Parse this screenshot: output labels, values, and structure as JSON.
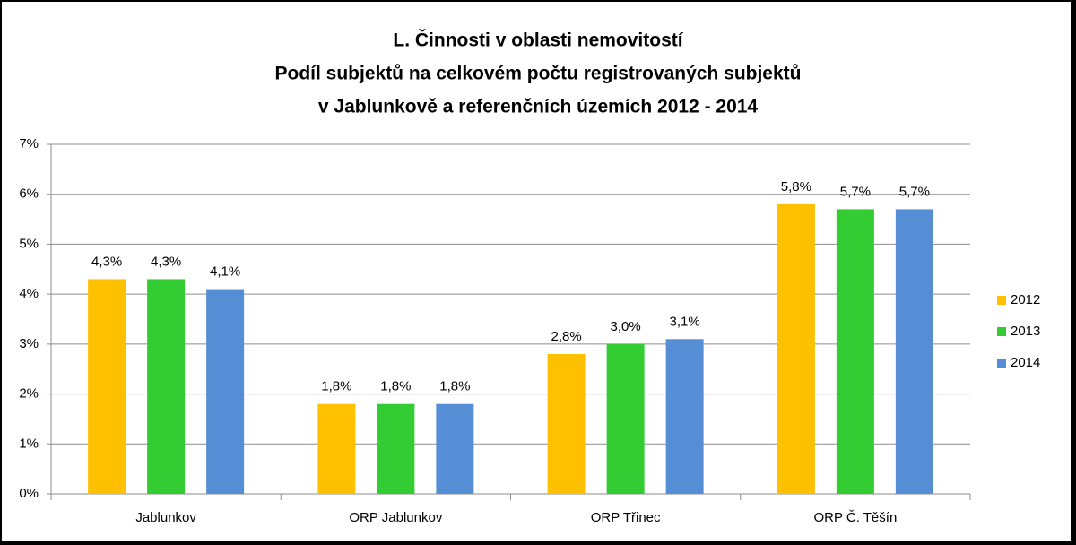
{
  "chart_data": {
    "type": "bar",
    "title": [
      "L. Činnosti v oblasti nemovitostí",
      "Podíl subjektů na celkovém počtu registrovaných subjektů",
      "v Jablunkově a referenčních územích 2012 - 2014"
    ],
    "categories": [
      "Jablunkov",
      "ORP Jablunkov",
      "ORP Třinec",
      "ORP Č. Těšín"
    ],
    "series": [
      {
        "name": "2012",
        "color": "#ffc000",
        "values": [
          4.3,
          1.8,
          2.8,
          5.8
        ],
        "value_labels": [
          "4,3%",
          "1,8%",
          "2,8%",
          "5,8%"
        ]
      },
      {
        "name": "2013",
        "color": "#33cc33",
        "values": [
          4.3,
          1.8,
          3.0,
          5.7
        ],
        "value_labels": [
          "4,3%",
          "1,8%",
          "3,0%",
          "5,7%"
        ]
      },
      {
        "name": "2014",
        "color": "#558ed5",
        "values": [
          4.1,
          1.8,
          3.1,
          5.7
        ],
        "value_labels": [
          "4,1%",
          "1,8%",
          "3,1%",
          "5,7%"
        ]
      }
    ],
    "ylim": [
      0,
      7
    ],
    "yticks": [
      {
        "value": 0,
        "label": "0%"
      },
      {
        "value": 1,
        "label": "1%"
      },
      {
        "value": 2,
        "label": "2%"
      },
      {
        "value": 3,
        "label": "3%"
      },
      {
        "value": 4,
        "label": "4%"
      },
      {
        "value": 5,
        "label": "5%"
      },
      {
        "value": 6,
        "label": "6%"
      },
      {
        "value": 7,
        "label": "7%"
      }
    ],
    "grid": true,
    "legend": "right"
  }
}
